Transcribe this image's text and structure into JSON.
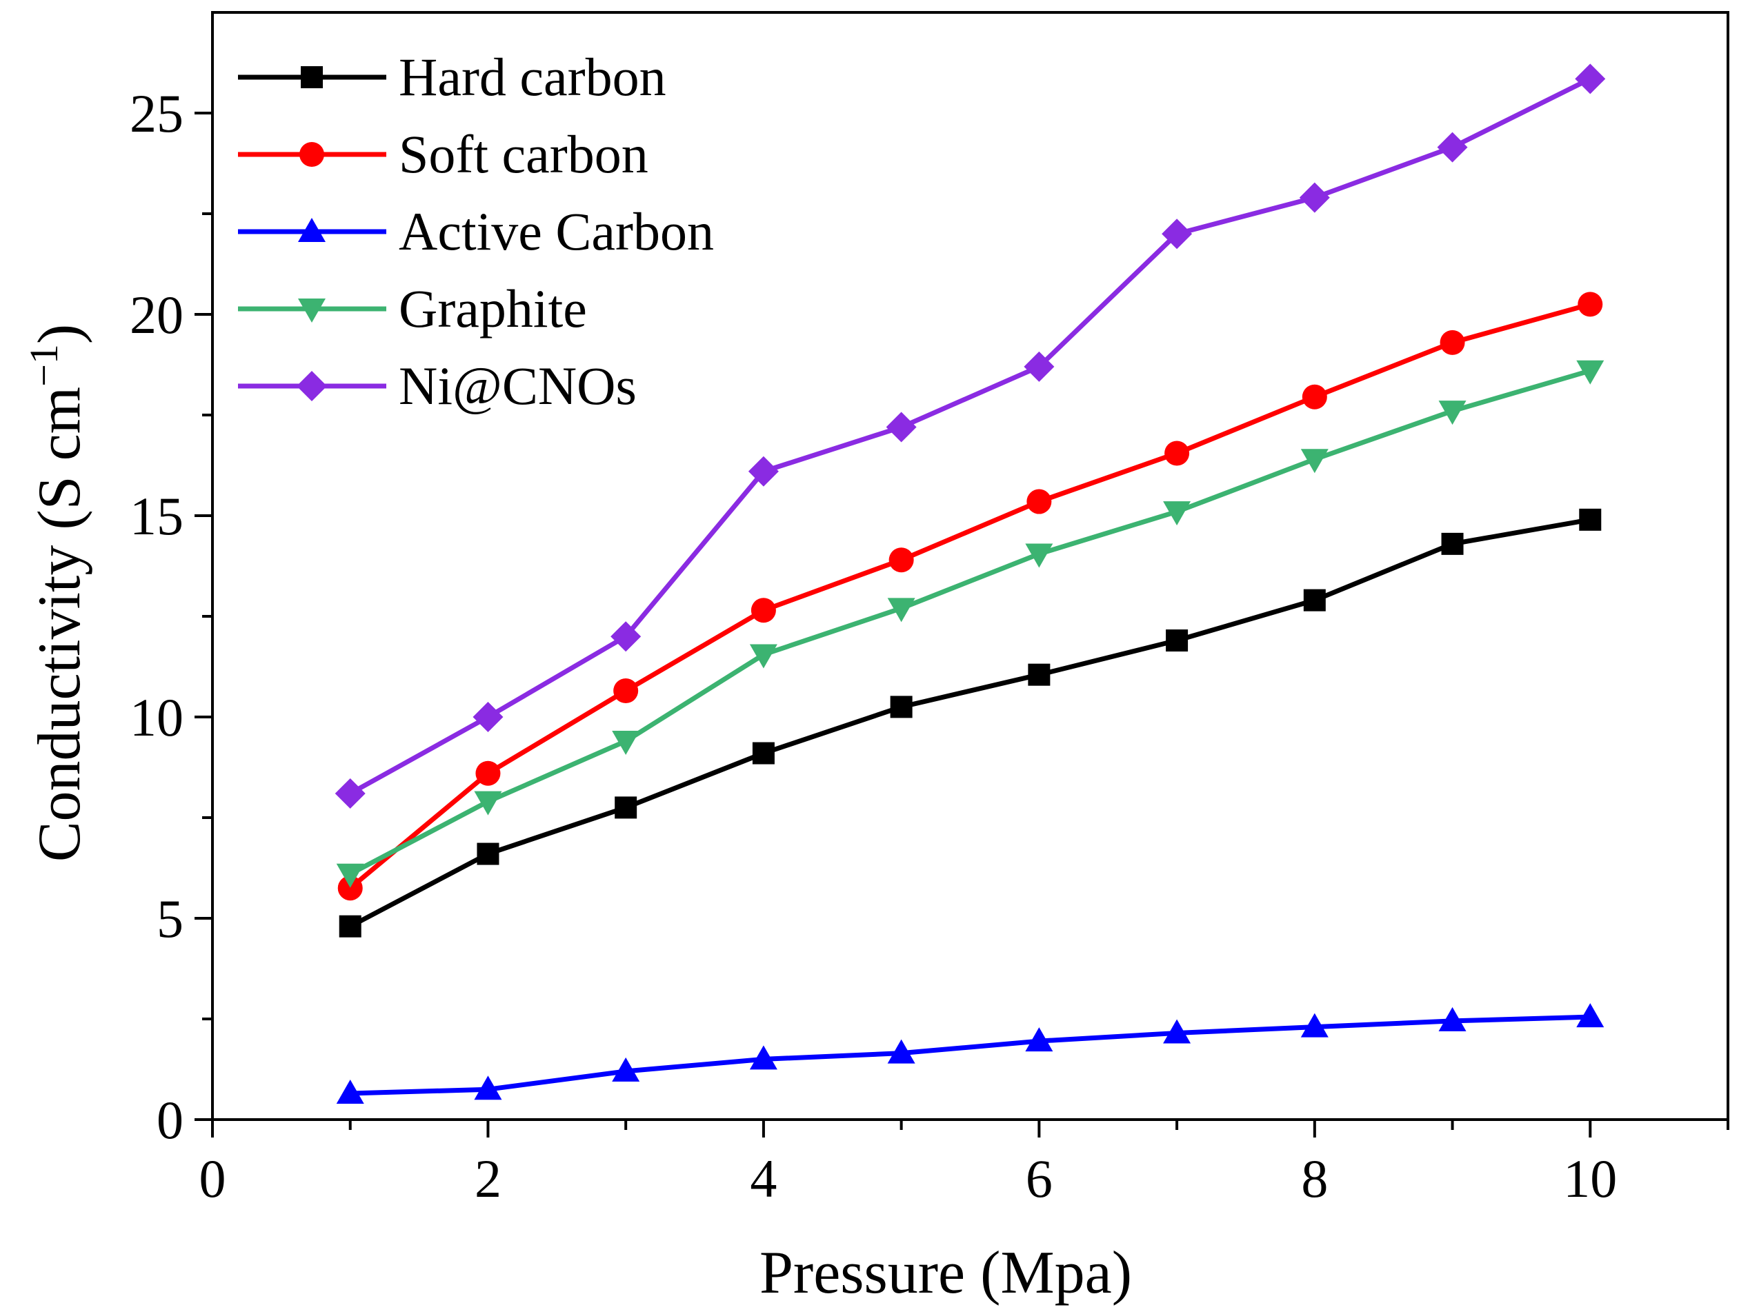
{
  "chart_data": {
    "type": "line",
    "title": "",
    "xlabel": "Pressure (Mpa)",
    "ylabel": "Conductivity (S cm",
    "ylabel_superscript": "−1",
    "ylabel_close": ")",
    "xlim": [
      0,
      11
    ],
    "ylim": [
      0,
      27.5
    ],
    "xticks": [
      0,
      2,
      4,
      6,
      8,
      10
    ],
    "yticks": [
      0,
      5,
      10,
      15,
      20,
      25
    ],
    "x_minor_ticks": [
      1,
      3,
      5,
      7,
      9,
      11
    ],
    "y_minor_ticks": [
      2.5,
      7.5,
      12.5,
      17.5,
      22.5
    ],
    "legend_position": "top-left",
    "grid": false,
    "x": [
      1,
      2,
      3,
      4,
      5,
      6,
      7,
      8,
      9,
      10
    ],
    "series": [
      {
        "name": "Hard carbon",
        "color": "#000000",
        "marker": "square",
        "values": [
          4.8,
          6.6,
          7.75,
          9.1,
          10.25,
          11.05,
          11.9,
          12.9,
          14.3,
          14.9
        ]
      },
      {
        "name": "Soft carbon",
        "color": "#ff0000",
        "marker": "circle",
        "values": [
          5.75,
          8.6,
          10.65,
          12.65,
          13.9,
          15.35,
          16.55,
          17.95,
          19.3,
          20.25
        ]
      },
      {
        "name": "Active Carbon",
        "color": "#0000ff",
        "marker": "triangle-up",
        "values": [
          0.65,
          0.75,
          1.2,
          1.5,
          1.65,
          1.95,
          2.15,
          2.3,
          2.45,
          2.55
        ]
      },
      {
        "name": "Graphite",
        "color": "#3cb371",
        "marker": "triangle-down",
        "values": [
          6.1,
          7.9,
          9.4,
          11.55,
          12.7,
          14.05,
          15.1,
          16.4,
          17.6,
          18.6
        ]
      },
      {
        "name": "Ni@CNOs",
        "color": "#8a2be2",
        "marker": "diamond",
        "values": [
          8.1,
          10.0,
          12.0,
          16.1,
          17.2,
          18.7,
          22.0,
          22.9,
          24.15,
          25.85
        ]
      }
    ]
  }
}
